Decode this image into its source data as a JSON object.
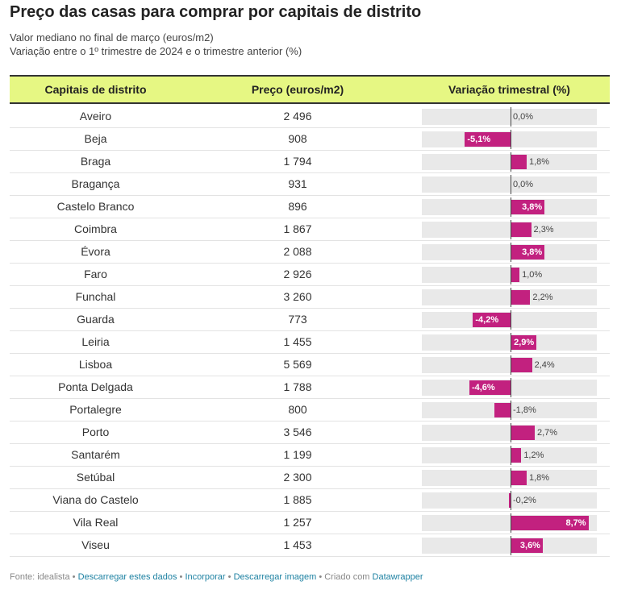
{
  "title": "Preço das casas para comprar por capitais de distrito",
  "subtitle1": "Valor mediano no final de março (euros/m2)",
  "subtitle2": "Variação entre o 1º trimestre de 2024 e o trimestre anterior (%)",
  "headers": {
    "city": "Capitais de distrito",
    "price": "Preço (euros/m2)",
    "variation": "Variação trimestral (%)"
  },
  "colors": {
    "bar": "#c2217f",
    "header_bg": "#e6f783",
    "bar_track": "#e9e9e9"
  },
  "chart_data": {
    "type": "table",
    "columns": [
      "Capitais de distrito",
      "Preço (euros/m2)",
      "Variação trimestral (%)"
    ],
    "variation_range": [
      -5.1,
      8.7
    ],
    "rows": [
      {
        "city": "Aveiro",
        "price": "2 496",
        "variation": 0.0,
        "variation_label": "0,0%"
      },
      {
        "city": "Beja",
        "price": "908",
        "variation": -5.1,
        "variation_label": "-5,1%"
      },
      {
        "city": "Braga",
        "price": "1 794",
        "variation": 1.8,
        "variation_label": "1,8%"
      },
      {
        "city": "Bragança",
        "price": "931",
        "variation": 0.0,
        "variation_label": "0,0%"
      },
      {
        "city": "Castelo Branco",
        "price": "896",
        "variation": 3.8,
        "variation_label": "3,8%"
      },
      {
        "city": "Coimbra",
        "price": "1 867",
        "variation": 2.3,
        "variation_label": "2,3%"
      },
      {
        "city": "Évora",
        "price": "2 088",
        "variation": 3.8,
        "variation_label": "3,8%"
      },
      {
        "city": "Faro",
        "price": "2 926",
        "variation": 1.0,
        "variation_label": "1,0%"
      },
      {
        "city": "Funchal",
        "price": "3 260",
        "variation": 2.2,
        "variation_label": "2,2%"
      },
      {
        "city": "Guarda",
        "price": "773",
        "variation": -4.2,
        "variation_label": "-4,2%"
      },
      {
        "city": "Leiria",
        "price": "1 455",
        "variation": 2.9,
        "variation_label": "2,9%"
      },
      {
        "city": "Lisboa",
        "price": "5 569",
        "variation": 2.4,
        "variation_label": "2,4%"
      },
      {
        "city": "Ponta Delgada",
        "price": "1 788",
        "variation": -4.6,
        "variation_label": "-4,6%"
      },
      {
        "city": "Portalegre",
        "price": "800",
        "variation": -1.8,
        "variation_label": "-1,8%"
      },
      {
        "city": "Porto",
        "price": "3 546",
        "variation": 2.7,
        "variation_label": "2,7%"
      },
      {
        "city": "Santarém",
        "price": "1 199",
        "variation": 1.2,
        "variation_label": "1,2%"
      },
      {
        "city": "Setúbal",
        "price": "2 300",
        "variation": 1.8,
        "variation_label": "1,8%"
      },
      {
        "city": "Viana do Castelo",
        "price": "1 885",
        "variation": -0.2,
        "variation_label": "-0,2%"
      },
      {
        "city": "Vila Real",
        "price": "1 257",
        "variation": 8.7,
        "variation_label": "8,7%"
      },
      {
        "city": "Viseu",
        "price": "1 453",
        "variation": 3.6,
        "variation_label": "3,6%"
      }
    ]
  },
  "footer": {
    "source": "Fonte: idealista",
    "sep": " • ",
    "download_data": "Descarregar estes dados",
    "embed": "Incorporar",
    "download_image": "Descarregar imagem",
    "created": "Criado com",
    "datawrapper": "Datawrapper"
  }
}
